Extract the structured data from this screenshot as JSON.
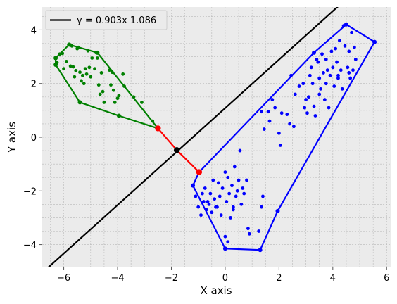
{
  "chart_data": {
    "type": "scatter",
    "title": "",
    "xlabel": "X axis",
    "ylabel": "Y axis",
    "xlim": [
      -6.8,
      6.15
    ],
    "ylim": [
      -4.85,
      4.85
    ],
    "xticks": [
      -6,
      -4,
      -2,
      0,
      2,
      4,
      6
    ],
    "yticks": [
      -4,
      -2,
      0,
      2,
      4
    ],
    "grid": true,
    "background_color": "#ebebeb",
    "legend": {
      "position": "top-left",
      "entries": [
        {
          "label": "y = 0.903x 1.086",
          "color": "#000000"
        }
      ]
    },
    "separating_line": {
      "label": "y = 0.903x 1.086",
      "slope": 0.903,
      "intercept": 1.086,
      "color": "#000000"
    },
    "support_segment": {
      "color": "#ff0000",
      "points": [
        [
          -2.5,
          0.33
        ],
        [
          -1.8,
          -0.48
        ],
        [
          -0.97,
          -1.3
        ]
      ]
    },
    "series": [
      {
        "color": "#008000",
        "points": [
          [
            -6.3,
            2.95
          ],
          [
            -6.25,
            2.78
          ],
          [
            -6.15,
            3.1
          ],
          [
            -6.05,
            3.12
          ],
          [
            -6.0,
            2.55
          ],
          [
            -5.9,
            2.82
          ],
          [
            -5.8,
            3.45
          ],
          [
            -5.7,
            3.4
          ],
          [
            -5.65,
            2.62
          ],
          [
            -5.6,
            2.25
          ],
          [
            -5.55,
            2.48
          ],
          [
            -5.5,
            3.3
          ],
          [
            -5.45,
            3.35
          ],
          [
            -5.4,
            2.42
          ],
          [
            -5.35,
            2.1
          ],
          [
            -5.3,
            2.3
          ],
          [
            -5.25,
            2.0
          ],
          [
            -5.2,
            2.55
          ],
          [
            -5.15,
            2.35
          ],
          [
            -5.1,
            3.22
          ],
          [
            -5.05,
            2.6
          ],
          [
            -5.0,
            2.25
          ],
          [
            -4.95,
            2.95
          ],
          [
            -4.85,
            2.55
          ],
          [
            -4.8,
            3.15
          ],
          [
            -4.75,
            2.95
          ],
          [
            -4.7,
            1.95
          ],
          [
            -4.65,
            1.6
          ],
          [
            -4.6,
            2.4
          ],
          [
            -4.55,
            1.7
          ],
          [
            -4.5,
            1.3
          ],
          [
            -4.3,
            2.5
          ],
          [
            -4.25,
            1.95
          ],
          [
            -4.2,
            2.42
          ],
          [
            -4.15,
            1.75
          ],
          [
            -4.1,
            1.3
          ],
          [
            -4.0,
            1.45
          ],
          [
            -3.95,
            1.55
          ],
          [
            -3.8,
            2.35
          ],
          [
            -3.75,
            1.9
          ],
          [
            -3.4,
            1.5
          ],
          [
            -3.1,
            1.3
          ],
          [
            -2.7,
            0.6
          ],
          [
            -2.5,
            0.33
          ],
          [
            -5.4,
            1.3
          ],
          [
            -3.95,
            0.8
          ],
          [
            -6.3,
            2.7
          ],
          [
            -5.75,
            2.65
          ]
        ],
        "hull": [
          [
            -6.3,
            2.95
          ],
          [
            -5.8,
            3.45
          ],
          [
            -4.75,
            3.15
          ],
          [
            -2.5,
            0.33
          ],
          [
            -3.95,
            0.8
          ],
          [
            -5.4,
            1.3
          ],
          [
            -6.3,
            2.7
          ]
        ]
      },
      {
        "color": "#0000ff",
        "points": [
          [
            -0.97,
            -1.3
          ],
          [
            -1.2,
            -1.8
          ],
          [
            -1.1,
            -2.2
          ],
          [
            -1.0,
            -2.6
          ],
          [
            -0.9,
            -2.9
          ],
          [
            -0.8,
            -2.4
          ],
          [
            -0.75,
            -1.9
          ],
          [
            -0.7,
            -2.7
          ],
          [
            -0.6,
            -2.5
          ],
          [
            -0.55,
            -2.1
          ],
          [
            -0.5,
            -2.8
          ],
          [
            -0.45,
            -1.6
          ],
          [
            -0.4,
            -2.3
          ],
          [
            -0.3,
            -2.6
          ],
          [
            -0.25,
            -1.7
          ],
          [
            -0.2,
            -2.2
          ],
          [
            -0.15,
            -2.9
          ],
          [
            -0.1,
            -1.9
          ],
          [
            0.0,
            -1.3
          ],
          [
            0.05,
            -2.4
          ],
          [
            0.1,
            -1.5
          ],
          [
            0.15,
            -2.1
          ],
          [
            0.2,
            -3.0
          ],
          [
            0.25,
            -1.8
          ],
          [
            0.3,
            -2.6
          ],
          [
            0.35,
            -1.1
          ],
          [
            0.4,
            -2.2
          ],
          [
            0.45,
            -2.0
          ],
          [
            0.5,
            -1.6
          ],
          [
            0.55,
            -0.5
          ],
          [
            0.6,
            -2.5
          ],
          [
            0.65,
            -1.9
          ],
          [
            0.7,
            -2.1
          ],
          [
            0.8,
            -1.6
          ],
          [
            0.85,
            -3.4
          ],
          [
            0.9,
            -3.6
          ],
          [
            0.0,
            -3.7
          ],
          [
            0.1,
            -3.9
          ],
          [
            0.3,
            -2.7
          ],
          [
            -0.35,
            -2.6
          ],
          [
            -0.65,
            -2.4
          ],
          [
            -0.85,
            -2.1
          ],
          [
            0.0,
            -4.15
          ],
          [
            1.3,
            -4.2
          ],
          [
            1.25,
            -3.5
          ],
          [
            1.35,
            -2.6
          ],
          [
            1.4,
            -2.2
          ],
          [
            1.95,
            -2.75
          ],
          [
            1.35,
            0.95
          ],
          [
            1.45,
            0.3
          ],
          [
            1.6,
            0.95
          ],
          [
            1.65,
            0.6
          ],
          [
            1.75,
            1.4
          ],
          [
            1.85,
            1.1
          ],
          [
            2.0,
            0.15
          ],
          [
            2.05,
            -0.3
          ],
          [
            2.1,
            0.9
          ],
          [
            2.3,
            0.85
          ],
          [
            2.4,
            0.5
          ],
          [
            2.45,
            2.3
          ],
          [
            2.55,
            0.4
          ],
          [
            2.6,
            1.6
          ],
          [
            2.75,
            1.9
          ],
          [
            2.9,
            2.0
          ],
          [
            3.0,
            1.4
          ],
          [
            3.05,
            0.9
          ],
          [
            3.1,
            1.5
          ],
          [
            3.15,
            2.3
          ],
          [
            3.2,
            2.6
          ],
          [
            3.3,
            1.15
          ],
          [
            3.35,
            0.8
          ],
          [
            3.4,
            2.9
          ],
          [
            3.5,
            2.2
          ],
          [
            3.55,
            1.8
          ],
          [
            3.6,
            3.1
          ],
          [
            3.65,
            2.4
          ],
          [
            3.7,
            1.4
          ],
          [
            3.75,
            2.0
          ],
          [
            3.8,
            2.5
          ],
          [
            3.85,
            1.1
          ],
          [
            3.9,
            2.3
          ],
          [
            3.95,
            3.2
          ],
          [
            4.0,
            2.6
          ],
          [
            4.05,
            1.9
          ],
          [
            4.1,
            3.3
          ],
          [
            4.15,
            2.8
          ],
          [
            4.2,
            2.3
          ],
          [
            4.25,
            3.6
          ],
          [
            4.3,
            2.5
          ],
          [
            4.35,
            1.8
          ],
          [
            4.4,
            4.15
          ],
          [
            4.45,
            3.4
          ],
          [
            4.5,
            4.2
          ],
          [
            4.55,
            2.6
          ],
          [
            4.6,
            3.2
          ],
          [
            4.65,
            2.2
          ],
          [
            4.7,
            3.9
          ],
          [
            4.75,
            2.5
          ],
          [
            4.8,
            3.35
          ],
          [
            4.85,
            2.9
          ],
          [
            5.55,
            3.55
          ],
          [
            3.5,
            1.6
          ],
          [
            3.25,
            2.0
          ],
          [
            2.95,
            1.1
          ],
          [
            3.75,
            2.9
          ],
          [
            4.2,
            2.2
          ],
          [
            3.45,
            2.8
          ],
          [
            4.6,
            2.4
          ]
        ],
        "hull": [
          [
            -0.97,
            -1.3
          ],
          [
            3.3,
            3.15
          ],
          [
            4.5,
            4.2
          ],
          [
            5.55,
            3.55
          ],
          [
            1.95,
            -2.75
          ],
          [
            1.3,
            -4.2
          ],
          [
            0.0,
            -4.15
          ],
          [
            -1.2,
            -1.8
          ]
        ]
      }
    ]
  }
}
